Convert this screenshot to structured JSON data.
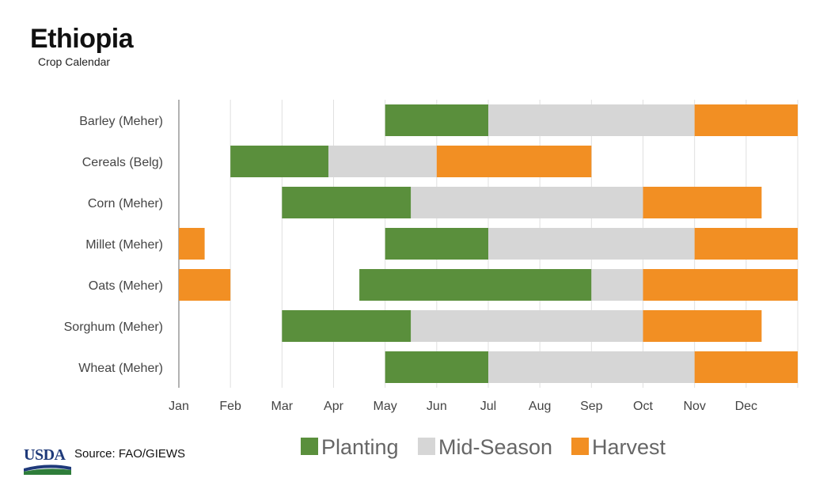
{
  "header": {
    "title": "Ethiopia",
    "subtitle": "Crop Calendar"
  },
  "footer": {
    "logo_text": "USDA",
    "source": "Source: FAO/GIEWS"
  },
  "colors": {
    "planting": "#5a8f3c",
    "mid_season": "#d6d6d6",
    "harvest": "#f28f23",
    "grid": "#e0e0e0",
    "axis": "#999999"
  },
  "chart_data": {
    "type": "bar",
    "orientation": "horizontal",
    "stacked": true,
    "title": "Ethiopia",
    "subtitle": "Crop Calendar",
    "x_axis_ticks": [
      "Jan",
      "Feb",
      "Mar",
      "Apr",
      "May",
      "Jun",
      "Jul",
      "Aug",
      "Sep",
      "Oct",
      "Nov",
      "Dec"
    ],
    "xlim": [
      0,
      12
    ],
    "grid": true,
    "legend_position": "bottom",
    "legend": [
      "Planting",
      "Mid-Season",
      "Harvest"
    ],
    "categories": [
      "Barley (Meher)",
      "Cereals (Belg)",
      "Corn (Meher)",
      "Millet (Meher)",
      "Oats (Meher)",
      "Sorghum (Meher)",
      "Wheat (Meher)"
    ],
    "segments": [
      [
        {
          "stage": "Planting",
          "start": 4.0,
          "end": 6.0
        },
        {
          "stage": "Mid-Season",
          "start": 6.0,
          "end": 10.0
        },
        {
          "stage": "Harvest",
          "start": 10.0,
          "end": 12.0
        }
      ],
      [
        {
          "stage": "Planting",
          "start": 1.0,
          "end": 2.9
        },
        {
          "stage": "Mid-Season",
          "start": 2.9,
          "end": 5.0
        },
        {
          "stage": "Harvest",
          "start": 5.0,
          "end": 8.0
        }
      ],
      [
        {
          "stage": "Planting",
          "start": 2.0,
          "end": 4.5
        },
        {
          "stage": "Mid-Season",
          "start": 4.5,
          "end": 9.0
        },
        {
          "stage": "Harvest",
          "start": 9.0,
          "end": 11.3
        }
      ],
      [
        {
          "stage": "Harvest",
          "start": 0.0,
          "end": 0.5
        },
        {
          "stage": "Planting",
          "start": 4.0,
          "end": 6.0
        },
        {
          "stage": "Mid-Season",
          "start": 6.0,
          "end": 10.0
        },
        {
          "stage": "Harvest",
          "start": 10.0,
          "end": 12.0
        }
      ],
      [
        {
          "stage": "Harvest",
          "start": 0.0,
          "end": 1.0
        },
        {
          "stage": "Planting",
          "start": 3.5,
          "end": 8.0
        },
        {
          "stage": "Mid-Season",
          "start": 8.0,
          "end": 9.0
        },
        {
          "stage": "Harvest",
          "start": 9.0,
          "end": 12.0
        }
      ],
      [
        {
          "stage": "Planting",
          "start": 2.0,
          "end": 4.5
        },
        {
          "stage": "Mid-Season",
          "start": 4.5,
          "end": 9.0
        },
        {
          "stage": "Harvest",
          "start": 9.0,
          "end": 11.3
        }
      ],
      [
        {
          "stage": "Planting",
          "start": 4.0,
          "end": 6.0
        },
        {
          "stage": "Mid-Season",
          "start": 6.0,
          "end": 10.0
        },
        {
          "stage": "Harvest",
          "start": 10.0,
          "end": 12.0
        }
      ]
    ]
  }
}
